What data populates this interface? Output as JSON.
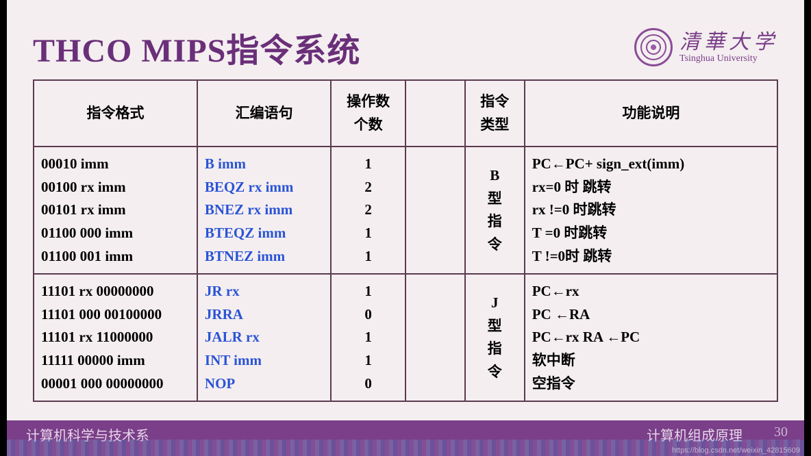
{
  "title": "THCO MIPS指令系统",
  "university": {
    "cn": "清華大学",
    "en": "Tsinghua University"
  },
  "headers": {
    "c1": "指令格式",
    "c2": "汇编语句",
    "c3": "操作数\n个数",
    "c4": "",
    "c5": "指令\n类型",
    "c6": "功能说明"
  },
  "groups": [
    {
      "type_label": "B\n型\n指\n令",
      "rows": [
        {
          "fmt": "00010 imm",
          "asm": "B imm",
          "ops": "1",
          "desc": "PC←PC+ sign_ext(imm)"
        },
        {
          "fmt": "00100 rx imm",
          "asm": "BEQZ rx imm",
          "ops": "2",
          "desc": "rx=0 时 跳转"
        },
        {
          "fmt": "00101 rx imm",
          "asm": "BNEZ rx imm",
          "ops": "2",
          "desc": "rx !=0 时跳转"
        },
        {
          "fmt": "01100 000 imm",
          "asm": "BTEQZ  imm",
          "ops": "1",
          "desc": "T =0 时跳转"
        },
        {
          "fmt": "01100 001 imm",
          "asm": "BTNEZ  imm",
          "ops": "1",
          "desc": "T !=0时 跳转"
        }
      ]
    },
    {
      "type_label": "J\n型\n指\n令",
      "rows": [
        {
          "fmt": "11101 rx 00000000",
          "asm": "JR rx",
          "ops": "1",
          "desc": "PC←rx"
        },
        {
          "fmt": "11101 000 00100000",
          "asm": "JRRA",
          "ops": "0",
          "desc": "PC ←RA"
        },
        {
          "fmt": "11101 rx 11000000",
          "asm": "JALR rx",
          "ops": "1",
          "desc": "PC←rx RA ←PC"
        },
        {
          "fmt": "11111 00000 imm",
          "asm": "INT imm",
          "ops": "1",
          "desc": "软中断"
        },
        {
          "fmt": "00001 000 00000000",
          "asm": "NOP",
          "ops": "0",
          "desc": "空指令"
        }
      ]
    }
  ],
  "footer": {
    "left": "计算机科学与技术系",
    "right": "计算机组成原理",
    "page": "30"
  },
  "watermark": "https://blog.csdn.net/weixin_42815609",
  "colors": {
    "title": "#6a2f79",
    "brand": "#7a3f88",
    "border": "#5a3a4f",
    "asm": "#2a54d6",
    "bg": "#f4eef0"
  }
}
